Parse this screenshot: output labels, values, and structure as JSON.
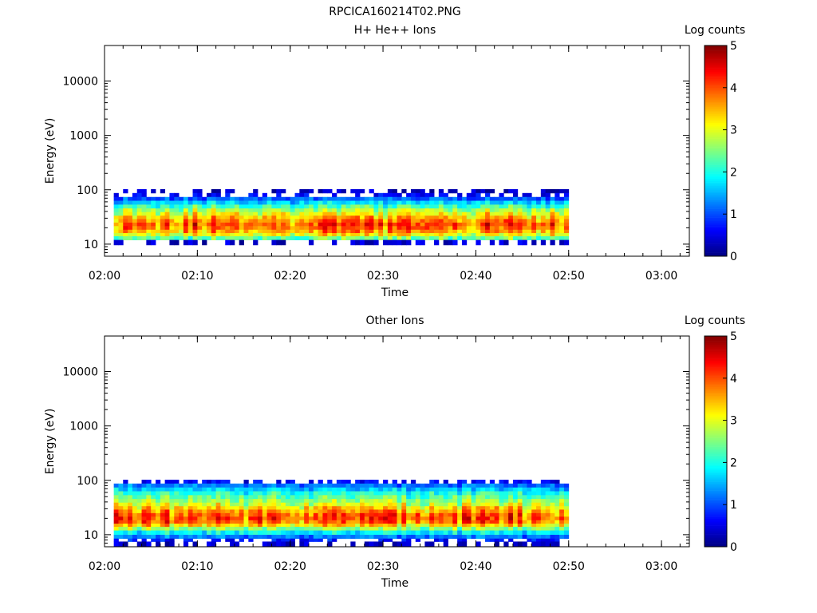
{
  "figure": {
    "title": "RPCICA160214T02.PNG"
  },
  "chart_data": [
    {
      "type": "heatmap",
      "title": "H+ He++ Ions",
      "xlabel": "Time",
      "ylabel": "Energy (eV)",
      "colorbar_label": "Log counts",
      "colormap": "jet",
      "y_scale": "log",
      "xlim": [
        "02:00",
        "03:03"
      ],
      "ylim": [
        6,
        45000
      ],
      "x_ticks": [
        "02:00",
        "02:10",
        "02:20",
        "02:30",
        "02:40",
        "02:50",
        "03:00"
      ],
      "y_ticks": [
        "10",
        "100",
        "1000",
        "10000"
      ],
      "colorbar_ticks": [
        "0",
        "1",
        "2",
        "3",
        "4",
        "5"
      ],
      "colorbar_range": [
        0,
        5
      ],
      "data_time_range": [
        "02:01",
        "02:50"
      ],
      "data_energy_range_ev": [
        11,
        95
      ],
      "peak_energy_ev": 22,
      "peak_log_counts": 4.0,
      "energy_profile": {
        "energy_ev": [
          95,
          80,
          68,
          58,
          49,
          42,
          36,
          31,
          27,
          23,
          20,
          17,
          15,
          13,
          11
        ],
        "log_counts": [
          0.3,
          0.6,
          1.1,
          1.7,
          2.2,
          2.7,
          3.1,
          3.5,
          3.8,
          4.0,
          3.9,
          3.6,
          3.1,
          2.4,
          0.4
        ]
      },
      "grid": false
    },
    {
      "type": "heatmap",
      "title": "Other Ions",
      "xlabel": "Time",
      "ylabel": "Energy (eV)",
      "colorbar_label": "Log counts",
      "colormap": "jet",
      "y_scale": "log",
      "xlim": [
        "02:00",
        "03:03"
      ],
      "ylim": [
        6,
        45000
      ],
      "x_ticks": [
        "02:00",
        "02:10",
        "02:20",
        "02:30",
        "02:40",
        "02:50",
        "03:00"
      ],
      "y_ticks": [
        "10",
        "100",
        "1000",
        "10000"
      ],
      "colorbar_ticks": [
        "0",
        "1",
        "2",
        "3",
        "4",
        "5"
      ],
      "colorbar_range": [
        0,
        5
      ],
      "data_time_range": [
        "02:01",
        "02:50"
      ],
      "data_energy_range_ev": [
        7,
        95
      ],
      "peak_energy_ev": 21,
      "peak_log_counts": 4.0,
      "energy_profile": {
        "energy_ev": [
          95,
          80,
          68,
          58,
          49,
          42,
          36,
          31,
          27,
          23,
          20,
          17,
          15,
          13,
          11,
          9,
          8,
          7
        ],
        "log_counts": [
          0.6,
          1.2,
          1.6,
          2.0,
          2.3,
          2.6,
          2.9,
          3.3,
          3.6,
          3.9,
          4.0,
          3.8,
          3.3,
          2.6,
          1.8,
          1.2,
          0.7,
          0.3
        ]
      },
      "grid": false
    }
  ]
}
